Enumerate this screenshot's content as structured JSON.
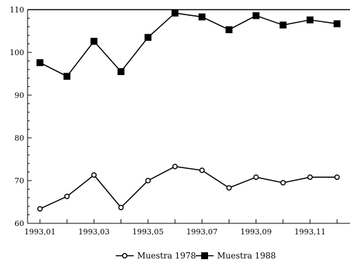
{
  "chart_data": {
    "type": "line",
    "x": [
      "1993,01",
      "1993,02",
      "1993,03",
      "1993,04",
      "1993,05",
      "1993,06",
      "1993,07",
      "1993,08",
      "1993,09",
      "1993,10",
      "1993,11",
      "1993,12"
    ],
    "x_tick_labels": [
      "1993,01",
      "1993,03",
      "1993,05",
      "1993,07",
      "1993,09",
      "1993,11"
    ],
    "y_tick_labels": [
      "60",
      "70",
      "80",
      "90",
      "100",
      "110"
    ],
    "ylim": [
      60,
      110
    ],
    "grid": false,
    "legend_position": "bottom",
    "series": [
      {
        "name": "Muestra 1978",
        "marker": "open-circle",
        "color": "#000000",
        "values": [
          63.4,
          66.3,
          71.3,
          63.7,
          70.0,
          73.3,
          72.4,
          68.3,
          70.8,
          69.5,
          70.8,
          70.8
        ]
      },
      {
        "name": "Muestra 1988",
        "marker": "filled-square",
        "color": "#000000",
        "values": [
          97.6,
          94.4,
          102.6,
          95.5,
          103.5,
          109.2,
          108.3,
          105.3,
          108.6,
          106.4,
          107.6,
          106.7
        ]
      }
    ]
  }
}
